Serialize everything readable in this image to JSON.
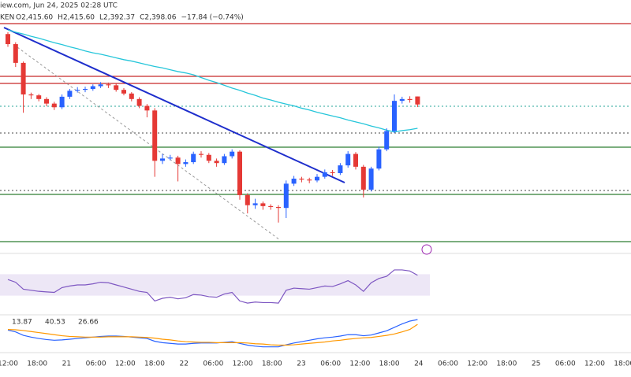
{
  "chart_data": {
    "type": "candlestick",
    "title": "iew.com, Jun 24, 2025 02:28 UTC",
    "subtitle": "KEN",
    "ohlc_labels": [
      "O2,415.60",
      "H2,415.60",
      "L2,392.37",
      "C2,398.06",
      "−17.84 (−0.74%)"
    ],
    "up_color": "#2962ff",
    "down_color": "#e53935",
    "ylim": [
      2076,
      2592
    ],
    "candles": [
      [
        2552,
        2556,
        2524,
        2530
      ],
      [
        2530,
        2534,
        2480,
        2489
      ],
      [
        2489,
        2492,
        2380,
        2420
      ],
      [
        2420,
        2424,
        2410,
        2418
      ],
      [
        2418,
        2421,
        2405,
        2410
      ],
      [
        2410,
        2414,
        2394,
        2400
      ],
      [
        2400,
        2404,
        2386,
        2392
      ],
      [
        2392,
        2420,
        2388,
        2415
      ],
      [
        2415,
        2432,
        2410,
        2428
      ],
      [
        2428,
        2436,
        2424,
        2430
      ],
      [
        2430,
        2437,
        2425,
        2432
      ],
      [
        2432,
        2442,
        2428,
        2438
      ],
      [
        2438,
        2447,
        2434,
        2442
      ],
      [
        2442,
        2446,
        2434,
        2440
      ],
      [
        2440,
        2444,
        2426,
        2430
      ],
      [
        2430,
        2434,
        2418,
        2422
      ],
      [
        2422,
        2425,
        2405,
        2410
      ],
      [
        2410,
        2414,
        2390,
        2395
      ],
      [
        2395,
        2399,
        2370,
        2385
      ],
      [
        2385,
        2390,
        2240,
        2275
      ],
      [
        2275,
        2290,
        2268,
        2280
      ],
      [
        2280,
        2288,
        2276,
        2282
      ],
      [
        2282,
        2286,
        2230,
        2268
      ],
      [
        2268,
        2278,
        2262,
        2272
      ],
      [
        2272,
        2295,
        2268,
        2290
      ],
      [
        2290,
        2296,
        2282,
        2288
      ],
      [
        2288,
        2292,
        2270,
        2275
      ],
      [
        2275,
        2280,
        2262,
        2270
      ],
      [
        2270,
        2290,
        2266,
        2285
      ],
      [
        2285,
        2300,
        2280,
        2295
      ],
      [
        2295,
        2298,
        2190,
        2200
      ],
      [
        2200,
        2204,
        2160,
        2178
      ],
      [
        2178,
        2192,
        2170,
        2182
      ],
      [
        2182,
        2186,
        2168,
        2176
      ],
      [
        2176,
        2180,
        2168,
        2174
      ],
      [
        2174,
        2178,
        2140,
        2172
      ],
      [
        2172,
        2232,
        2150,
        2225
      ],
      [
        2225,
        2242,
        2220,
        2236
      ],
      [
        2236,
        2240,
        2228,
        2234
      ],
      [
        2234,
        2238,
        2226,
        2232
      ],
      [
        2232,
        2246,
        2228,
        2240
      ],
      [
        2240,
        2256,
        2236,
        2250
      ],
      [
        2250,
        2255,
        2242,
        2248
      ],
      [
        2248,
        2270,
        2244,
        2265
      ],
      [
        2265,
        2296,
        2260,
        2290
      ],
      [
        2290,
        2294,
        2256,
        2262
      ],
      [
        2262,
        2266,
        2195,
        2212
      ],
      [
        2212,
        2262,
        2208,
        2258
      ],
      [
        2258,
        2306,
        2254,
        2300
      ],
      [
        2300,
        2346,
        2296,
        2340
      ],
      [
        2340,
        2420,
        2336,
        2406
      ],
      [
        2406,
        2415,
        2400,
        2410
      ],
      [
        2410,
        2416,
        2402,
        2408
      ],
      [
        2415.6,
        2415.6,
        2392.37,
        2398.06
      ]
    ],
    "ma": {
      "color": "#26c6da",
      "values": [
        2561,
        2556,
        2552,
        2547,
        2543,
        2538,
        2533,
        2529,
        2524,
        2520,
        2515,
        2511,
        2508,
        2504,
        2500,
        2496,
        2493,
        2489,
        2485,
        2481,
        2478,
        2474,
        2470,
        2467,
        2463,
        2457,
        2451,
        2446,
        2440,
        2434,
        2429,
        2423,
        2418,
        2412,
        2408,
        2403,
        2399,
        2395,
        2390,
        2386,
        2381,
        2377,
        2373,
        2369,
        2364,
        2360,
        2356,
        2351,
        2347,
        2342,
        2338,
        2341,
        2343,
        2346
      ]
    },
    "rsi": {
      "color": "#7e57c2",
      "ylim": [
        0,
        100
      ],
      "band": [
        30,
        70
      ],
      "values": [
        60,
        55,
        42,
        40,
        38,
        37,
        36,
        45,
        48,
        50,
        50,
        52,
        55,
        54,
        50,
        46,
        42,
        38,
        36,
        20,
        25,
        27,
        24,
        26,
        32,
        31,
        28,
        27,
        33,
        36,
        20,
        16,
        18,
        17,
        17,
        16,
        40,
        44,
        43,
        42,
        45,
        48,
        47,
        52,
        58,
        50,
        38,
        54,
        62,
        66,
        78,
        78,
        76,
        68
      ]
    },
    "macd": {
      "ylim": [
        -50,
        45
      ],
      "readout": [
        13.87,
        40.53,
        26.66
      ],
      "series": [
        {
          "color": "#2962ff",
          "values": [
            10,
            5,
            -5,
            -10,
            -14,
            -17,
            -19,
            -18,
            -16,
            -14,
            -12,
            -10,
            -8,
            -7,
            -7,
            -8,
            -10,
            -12,
            -14,
            -22,
            -26,
            -28,
            -30,
            -30,
            -28,
            -27,
            -27,
            -27,
            -25,
            -23,
            -28,
            -33,
            -36,
            -38,
            -38,
            -38,
            -32,
            -27,
            -23,
            -19,
            -15,
            -12,
            -10,
            -7,
            -3,
            -3,
            -6,
            -4,
            2,
            8,
            18,
            28,
            36,
            40.53
          ]
        },
        {
          "color": "#ff9800",
          "values": [
            12,
            11,
            9,
            6,
            3,
            0,
            -3,
            -6,
            -8,
            -9,
            -10,
            -10,
            -10,
            -9,
            -9,
            -9,
            -9,
            -10,
            -11,
            -13,
            -16,
            -18,
            -21,
            -23,
            -24,
            -25,
            -25,
            -26,
            -26,
            -26,
            -26,
            -27,
            -29,
            -30,
            -32,
            -33,
            -33,
            -32,
            -30,
            -28,
            -26,
            -24,
            -21,
            -19,
            -16,
            -14,
            -12,
            -11,
            -8,
            -5,
            -1,
            5,
            12,
            26.66
          ]
        }
      ]
    },
    "categories": [
      "12:00",
      "18:00",
      "21",
      "06:00",
      "12:00",
      "18:00",
      "22",
      "06:00",
      "12:00",
      "18:00",
      "23",
      "06:00",
      "12:00",
      "18:00",
      "24",
      "06:00",
      "12:00",
      "18:00",
      "25",
      "06:00",
      "12:00",
      "18:00"
    ]
  }
}
